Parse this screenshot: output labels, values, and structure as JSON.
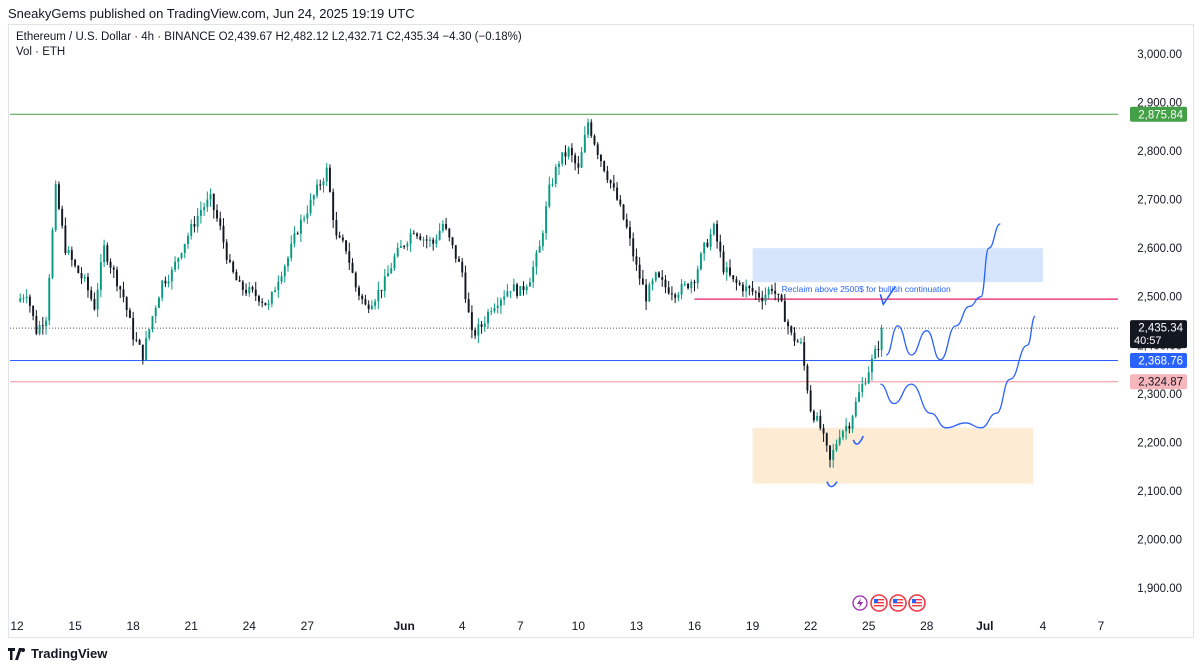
{
  "header": {
    "publisher_line": "SneakyGems published on TradingView.com, Jun 24, 2025 19:19 UTC"
  },
  "legend": {
    "symbol_line": "Ethereum / U.S. Dollar · 4h · BINANCE  O2,439.67  H2,482.12  L2,432.71  C2,435.34  −4.30 (−0.18%)",
    "vol_line": "Vol · ETH"
  },
  "footer": {
    "brand": "TradingView"
  },
  "colors": {
    "up": "#089981",
    "down": "#131722",
    "accent": "#2962ff",
    "resistance": "#43a047",
    "level_red": "#f23645"
  },
  "chart_data": {
    "type": "candlestick",
    "symbol": "Ethereum / U.S. Dollar",
    "interval": "4h",
    "exchange": "BINANCE",
    "ohlc_last": {
      "open": 2439.67,
      "high": 2482.12,
      "low": 2432.71,
      "close": 2435.34,
      "change": -4.3,
      "change_pct": -0.18
    },
    "y_ticks": [
      1900,
      2000,
      2100,
      2200,
      2300,
      2400,
      2500,
      2600,
      2700,
      2800,
      2900,
      3000
    ],
    "y_tick_labels": [
      "1,900.00",
      "2,000.00",
      "2,100.00",
      "2,200.00",
      "2,300.00",
      "2,400.00",
      "2,500.00",
      "2,600.00",
      "2,700.00",
      "2,800.00",
      "2,900.00",
      "3,000.00"
    ],
    "ylim": [
      1880,
      3030
    ],
    "x_tick_labels": [
      "12",
      "15",
      "18",
      "21",
      "24",
      "27",
      "Jun",
      "4",
      "7",
      "10",
      "13",
      "16",
      "19",
      "22",
      "25",
      "28",
      "Jul",
      "4",
      "7"
    ],
    "x_ticks_day_index": [
      0,
      3,
      6,
      9,
      12,
      15,
      20,
      23,
      26,
      29,
      32,
      35,
      38,
      41,
      44,
      47,
      50,
      53,
      56
    ],
    "xlim_days": [
      0,
      56
    ],
    "price_path": [
      [
        0,
        2490
      ],
      [
        0.5,
        2510
      ],
      [
        1,
        2430
      ],
      [
        1.5,
        2460
      ],
      [
        2,
        2720
      ],
      [
        2.5,
        2600
      ],
      [
        3,
        2560
      ],
      [
        3.5,
        2530
      ],
      [
        4,
        2480
      ],
      [
        4.5,
        2600
      ],
      [
        5,
        2550
      ],
      [
        5.5,
        2500
      ],
      [
        6,
        2420
      ],
      [
        6.5,
        2380
      ],
      [
        7,
        2460
      ],
      [
        7.5,
        2530
      ],
      [
        8,
        2550
      ],
      [
        8.5,
        2600
      ],
      [
        9,
        2640
      ],
      [
        9.5,
        2680
      ],
      [
        10,
        2700
      ],
      [
        10.5,
        2640
      ],
      [
        11,
        2560
      ],
      [
        11.5,
        2520
      ],
      [
        12,
        2510
      ],
      [
        12.5,
        2500
      ],
      [
        13,
        2480
      ],
      [
        13.5,
        2540
      ],
      [
        14,
        2580
      ],
      [
        14.5,
        2640
      ],
      [
        15,
        2680
      ],
      [
        15.5,
        2720
      ],
      [
        16,
        2760
      ],
      [
        16.5,
        2620
      ],
      [
        17,
        2600
      ],
      [
        17.5,
        2520
      ],
      [
        18,
        2480
      ],
      [
        18.5,
        2500
      ],
      [
        19,
        2530
      ],
      [
        19.5,
        2580
      ],
      [
        20,
        2610
      ],
      [
        20.5,
        2640
      ],
      [
        21,
        2620
      ],
      [
        21.5,
        2610
      ],
      [
        22,
        2650
      ],
      [
        22.5,
        2600
      ],
      [
        23,
        2550
      ],
      [
        23.5,
        2420
      ],
      [
        24,
        2440
      ],
      [
        24.5,
        2480
      ],
      [
        25,
        2500
      ],
      [
        25.5,
        2520
      ],
      [
        26,
        2510
      ],
      [
        26.5,
        2540
      ],
      [
        27,
        2600
      ],
      [
        27.5,
        2720
      ],
      [
        28,
        2780
      ],
      [
        28.5,
        2800
      ],
      [
        29,
        2760
      ],
      [
        29.5,
        2860
      ],
      [
        30,
        2800
      ],
      [
        30.5,
        2750
      ],
      [
        31,
        2700
      ],
      [
        31.5,
        2640
      ],
      [
        32,
        2560
      ],
      [
        32.5,
        2500
      ],
      [
        33,
        2540
      ],
      [
        33.5,
        2520
      ],
      [
        34,
        2510
      ],
      [
        34.5,
        2520
      ],
      [
        35,
        2540
      ],
      [
        35.5,
        2600
      ],
      [
        36,
        2640
      ],
      [
        36.5,
        2560
      ],
      [
        37,
        2530
      ],
      [
        37.5,
        2520
      ],
      [
        38,
        2510
      ],
      [
        38.5,
        2500
      ],
      [
        39,
        2520
      ],
      [
        39.5,
        2480
      ],
      [
        40,
        2420
      ],
      [
        40.5,
        2400
      ],
      [
        41,
        2270
      ],
      [
        41.5,
        2230
      ],
      [
        42,
        2160
      ],
      [
        42.5,
        2220
      ],
      [
        43,
        2240
      ],
      [
        43.5,
        2300
      ],
      [
        44,
        2350
      ],
      [
        44.5,
        2400
      ],
      [
        44.8,
        2435.34
      ]
    ],
    "reference_lines": [
      {
        "price": 2875.84,
        "label": "2,875.84",
        "color": "#43a047"
      },
      {
        "price": 2435.34,
        "label": "2,435.34",
        "sub_label": "40:57",
        "color": "#131722",
        "style": "dotted"
      },
      {
        "price": 2368.76,
        "label": "2,368.76",
        "color": "#2962ff"
      },
      {
        "price": 2324.87,
        "label": "2,324.87",
        "color": "#f23645"
      }
    ],
    "annotation_line": {
      "price": 2495,
      "from_day": 35,
      "to_day": 56,
      "color": "#e91e63"
    },
    "zones": [
      {
        "name": "supply-zone",
        "price_low": 2530,
        "price_high": 2600,
        "from_day": 38,
        "to_day": 53,
        "color": "#cfe0fb"
      },
      {
        "name": "demand-zone",
        "price_low": 2115,
        "price_high": 2230,
        "from_day": 38,
        "to_day": 52.5,
        "color": "#fde8cc"
      }
    ],
    "annotations": [
      {
        "text": "Reclaim above 2500$ for bullish continuation",
        "price": 2510,
        "day": 39.5
      }
    ],
    "projection_bullish": [
      [
        44.9,
        2380
      ],
      [
        45.5,
        2440
      ],
      [
        46.2,
        2380
      ],
      [
        47,
        2430
      ],
      [
        47.7,
        2370
      ],
      [
        48.5,
        2440
      ],
      [
        49.2,
        2480
      ],
      [
        49.8,
        2500
      ],
      [
        50.2,
        2600
      ],
      [
        50.8,
        2650
      ]
    ],
    "projection_bearish": [
      [
        44.6,
        2320
      ],
      [
        45.3,
        2280
      ],
      [
        46.2,
        2320
      ],
      [
        47.2,
        2260
      ],
      [
        48,
        2230
      ],
      [
        49,
        2240
      ],
      [
        49.8,
        2230
      ],
      [
        50.6,
        2260
      ],
      [
        51.3,
        2330
      ],
      [
        52.2,
        2400
      ],
      [
        52.6,
        2460
      ]
    ],
    "event_icons": [
      "earnings",
      "us-flag",
      "us-flag",
      "us-flag"
    ]
  }
}
